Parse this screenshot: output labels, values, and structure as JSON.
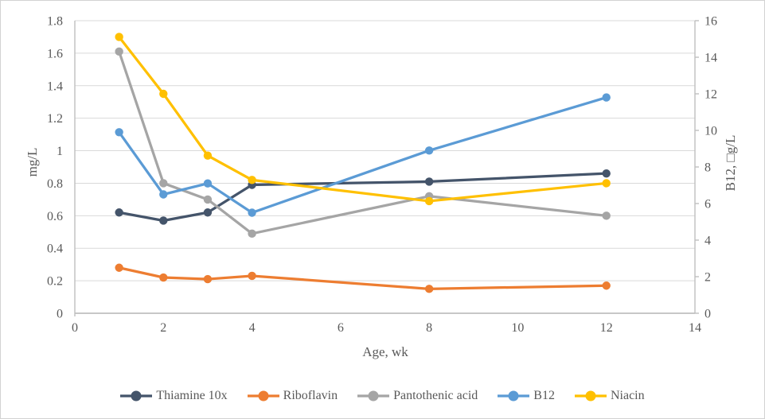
{
  "chart_data": {
    "type": "line",
    "title": "",
    "xlabel": "Age, wk",
    "ylabel_left": "mg/L",
    "ylabel_right": "B12, □g/L",
    "x": [
      1,
      2,
      3,
      4,
      8,
      12
    ],
    "x_axis": {
      "min": 0,
      "max": 14,
      "tick_labels": [
        "0",
        "2",
        "4",
        "6",
        "8",
        "10",
        "12",
        "14"
      ]
    },
    "y_axis_left": {
      "min": 0,
      "max": 1.8,
      "tick_labels": [
        "0",
        "0.2",
        "0.4",
        "0.6",
        "0.8",
        "1",
        "1.2",
        "1.4",
        "1.6",
        "1.8"
      ]
    },
    "y_axis_right": {
      "min": 0,
      "max": 16,
      "tick_labels": [
        "0",
        "2",
        "4",
        "6",
        "8",
        "10",
        "12",
        "14",
        "16"
      ]
    },
    "grid": "horizontal-major",
    "legend_position": "bottom",
    "series": [
      {
        "name": "Thiamine 10x",
        "color": "#44546A",
        "axis": "left",
        "values": [
          0.62,
          0.57,
          0.62,
          0.79,
          0.81,
          0.86
        ]
      },
      {
        "name": "Riboflavin",
        "color": "#ED7D31",
        "axis": "left",
        "values": [
          0.28,
          0.22,
          0.21,
          0.23,
          0.15,
          0.17
        ]
      },
      {
        "name": "Pantothenic acid",
        "color": "#A5A5A5",
        "axis": "left",
        "values": [
          1.61,
          0.8,
          0.7,
          0.49,
          0.72,
          0.6
        ]
      },
      {
        "name": "B12",
        "color": "#5B9BD5",
        "axis": "right",
        "values": [
          9.9,
          6.5,
          7.1,
          5.5,
          8.9,
          11.8
        ]
      },
      {
        "name": "Niacin",
        "color": "#FFC000",
        "axis": "left",
        "values": [
          1.7,
          1.35,
          0.97,
          0.82,
          0.69,
          0.8
        ]
      }
    ]
  },
  "colors": {
    "gridline": "#D9D9D9",
    "axis_line": "#BFBFBF",
    "tick_text": "#595959",
    "background": "#FFFFFF",
    "border": "#D2D2D2"
  }
}
